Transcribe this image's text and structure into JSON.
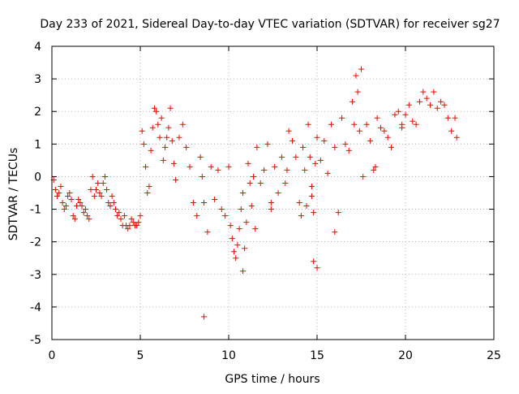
{
  "chart_data": {
    "type": "scatter",
    "title": "Day 233 of 2021, Sidereal Day-to-day VTEC variation (SDTVAR) for receiver sg27",
    "xlabel": "GPS time / hours",
    "ylabel": "SDTVAR / TECUs",
    "xlim": [
      0,
      25
    ],
    "ylim": [
      -5,
      4
    ],
    "x_ticks": [
      0,
      5,
      10,
      15,
      20,
      25
    ],
    "x_tick_labels": [
      "0",
      "5",
      "10",
      "15",
      "20",
      "25"
    ],
    "y_ticks": [
      4,
      3,
      2,
      1,
      0,
      -1,
      -2,
      -3,
      -4,
      -5
    ],
    "y_tick_labels": [
      "4",
      "3",
      "2",
      "1",
      "0",
      "-1",
      "-2",
      "-3",
      "-4",
      "-5"
    ],
    "grid": true,
    "marker": "+",
    "series": [
      {
        "name": "SDTVAR",
        "color": "#ff0000",
        "x": [
          0.1,
          0.2,
          0.3,
          0.4,
          0.5,
          0.6,
          0.7,
          0.8,
          0.9,
          1.0,
          1.1,
          1.2,
          1.3,
          1.4,
          1.5,
          1.6,
          1.7,
          1.8,
          1.9,
          2.0,
          2.1,
          2.2,
          2.3,
          2.4,
          2.5,
          2.6,
          2.7,
          2.8,
          2.9,
          3.0,
          3.1,
          3.2,
          3.3,
          3.4,
          3.5,
          3.6,
          3.7,
          3.8,
          3.9,
          4.0,
          4.1,
          4.2,
          4.3,
          4.4,
          4.5,
          4.6,
          4.7,
          4.8,
          4.9,
          5.0,
          5.1,
          5.2,
          5.3,
          5.4,
          5.5,
          5.6,
          5.7,
          5.8,
          5.9,
          6.0,
          6.1,
          6.2,
          6.3,
          6.4,
          6.5,
          6.6,
          6.7,
          6.8,
          6.9,
          7.0,
          7.2,
          7.4,
          7.6,
          7.8,
          8.0,
          8.2,
          8.4,
          8.5,
          8.6,
          8.8,
          9.0,
          9.2,
          9.4,
          9.6,
          9.8,
          10.0,
          10.1,
          10.2,
          10.3,
          10.4,
          10.5,
          10.6,
          10.7,
          10.8,
          10.9,
          11.0,
          11.1,
          11.2,
          11.3,
          11.4,
          11.5,
          11.6,
          11.8,
          12.0,
          12.2,
          12.4,
          12.6,
          12.8,
          13.0,
          13.2,
          13.4,
          13.6,
          13.8,
          14.0,
          14.1,
          14.2,
          14.3,
          14.4,
          14.5,
          14.6,
          14.7,
          14.8,
          14.9,
          15.0,
          15.2,
          15.4,
          15.6,
          15.8,
          16.0,
          16.2,
          16.4,
          16.6,
          16.8,
          17.0,
          17.1,
          17.2,
          17.3,
          17.4,
          17.5,
          17.6,
          17.8,
          18.0,
          18.2,
          18.4,
          18.6,
          18.8,
          19.0,
          19.2,
          19.4,
          19.6,
          19.8,
          20.0,
          20.2,
          20.4,
          20.6,
          20.8,
          21.0,
          21.2,
          21.4,
          21.6,
          21.8,
          22.0,
          22.2,
          22.4,
          22.6,
          22.8,
          22.9,
          8.6,
          10.8,
          14.7,
          14.8,
          15.0,
          16.0,
          12.4,
          13.3,
          18.3,
          19.8
        ],
        "y": [
          -0.1,
          -0.4,
          -0.6,
          -0.5,
          -0.3,
          -0.8,
          -1.0,
          -0.9,
          -0.6,
          -0.5,
          -0.7,
          -1.2,
          -1.3,
          -0.9,
          -0.7,
          -0.8,
          -0.9,
          -1.1,
          -1.0,
          -1.2,
          -1.3,
          -0.4,
          0.0,
          -0.6,
          -0.4,
          -0.2,
          -0.5,
          -0.6,
          -0.2,
          0.0,
          -0.4,
          -0.8,
          -0.9,
          -0.6,
          -0.8,
          -1.0,
          -1.2,
          -1.1,
          -1.3,
          -1.5,
          -1.2,
          -1.5,
          -1.6,
          -1.5,
          -1.3,
          -1.4,
          -1.5,
          -1.5,
          -1.4,
          -1.2,
          1.4,
          1.0,
          0.3,
          -0.5,
          -0.3,
          0.8,
          1.5,
          2.1,
          2.0,
          1.6,
          1.2,
          1.8,
          0.5,
          0.9,
          1.2,
          1.5,
          2.1,
          1.1,
          0.4,
          -0.1,
          1.2,
          1.6,
          0.9,
          0.3,
          -0.8,
          -1.2,
          0.6,
          0.0,
          -0.8,
          -1.7,
          0.3,
          -0.7,
          0.2,
          -1.0,
          -1.2,
          0.3,
          -1.5,
          -1.9,
          -2.3,
          -2.5,
          -2.1,
          -1.6,
          -1.0,
          -0.5,
          -2.2,
          -1.4,
          0.4,
          -0.2,
          -0.9,
          0.0,
          -1.6,
          0.9,
          -0.2,
          0.2,
          1.0,
          -0.8,
          0.3,
          -0.5,
          0.6,
          -0.2,
          1.4,
          1.1,
          0.6,
          -0.8,
          -1.2,
          0.9,
          0.2,
          -0.9,
          1.6,
          0.6,
          -0.3,
          -1.1,
          0.4,
          1.2,
          0.5,
          1.1,
          0.1,
          1.6,
          0.9,
          -1.1,
          1.8,
          1.0,
          0.8,
          2.3,
          1.6,
          3.1,
          2.6,
          1.4,
          3.3,
          0.0,
          1.6,
          1.1,
          0.2,
          1.8,
          1.5,
          1.4,
          1.2,
          0.9,
          1.9,
          2.0,
          1.6,
          1.9,
          2.2,
          1.7,
          1.6,
          2.3,
          2.6,
          2.4,
          2.2,
          2.6,
          2.1,
          2.3,
          2.2,
          1.8,
          1.4,
          1.8,
          1.2,
          -4.3,
          -2.9,
          -0.6,
          -2.6,
          -2.8,
          -1.7,
          -1.0,
          0.2,
          0.3,
          1.5
        ]
      }
    ]
  }
}
